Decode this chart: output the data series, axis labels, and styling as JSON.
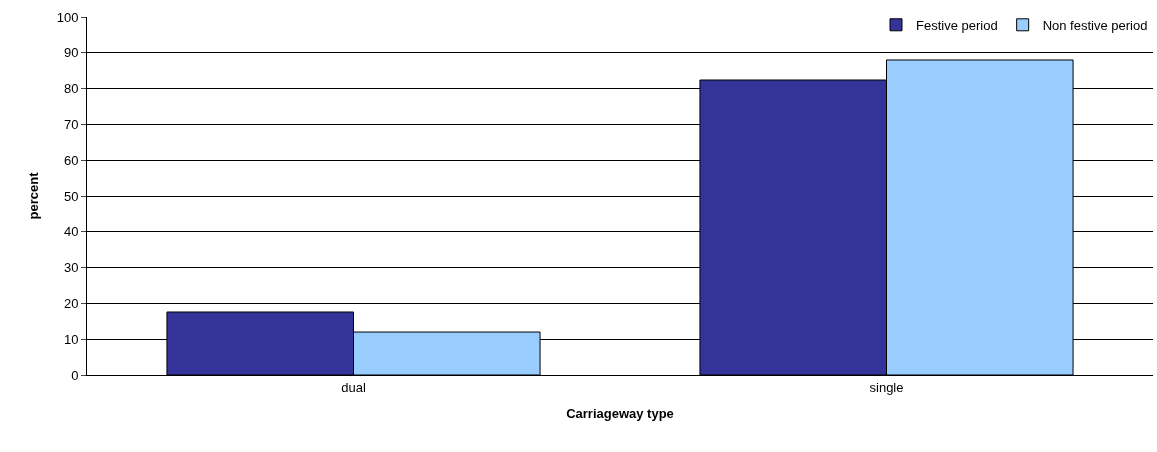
{
  "chart_data": {
    "type": "bar",
    "xlabel": "Carriageway type",
    "ylabel": "percent",
    "categories": [
      "dual",
      "single"
    ],
    "series": [
      {
        "name": "Festive period",
        "color": "#333399",
        "values": [
          17.6,
          82.4
        ]
      },
      {
        "name": "Non festive period",
        "color": "#99ccff",
        "values": [
          12,
          88
        ]
      }
    ],
    "ylim": [
      0,
      100
    ],
    "yticks": [
      0,
      10,
      20,
      30,
      40,
      50,
      60,
      70,
      80,
      90,
      100
    ],
    "grid": "y",
    "legend": "top right"
  }
}
